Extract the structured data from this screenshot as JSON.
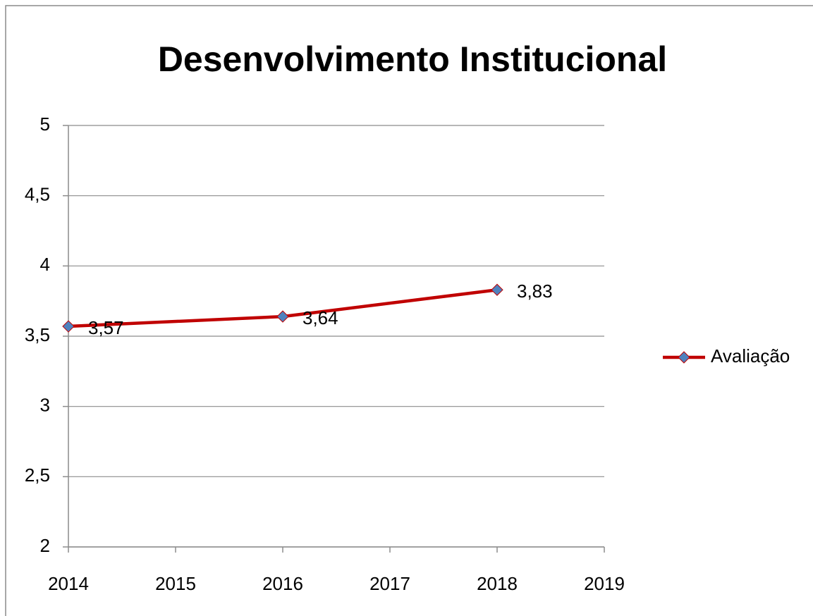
{
  "chart_data": {
    "type": "line",
    "title": "Desenvolvimento Institucional",
    "x": [
      2014,
      2016,
      2018
    ],
    "series": [
      {
        "name": "Avaliação",
        "color": "#c00000",
        "marker_color": "#4f81bd",
        "values": [
          3.57,
          3.64,
          3.83
        ],
        "value_labels": [
          "3,57",
          "3,64",
          "3,83"
        ]
      }
    ],
    "xlim": [
      2014,
      2019
    ],
    "xticks": [
      2014,
      2015,
      2016,
      2017,
      2018,
      2019
    ],
    "ylim": [
      2,
      5
    ],
    "yticks": [
      2,
      {
        "value": 2.5,
        "label": "2,5"
      },
      3,
      {
        "value": 3.5,
        "label": "3,5"
      },
      4,
      {
        "value": 4.5,
        "label": "4,5"
      },
      5
    ],
    "grid": true,
    "legend": "right"
  }
}
